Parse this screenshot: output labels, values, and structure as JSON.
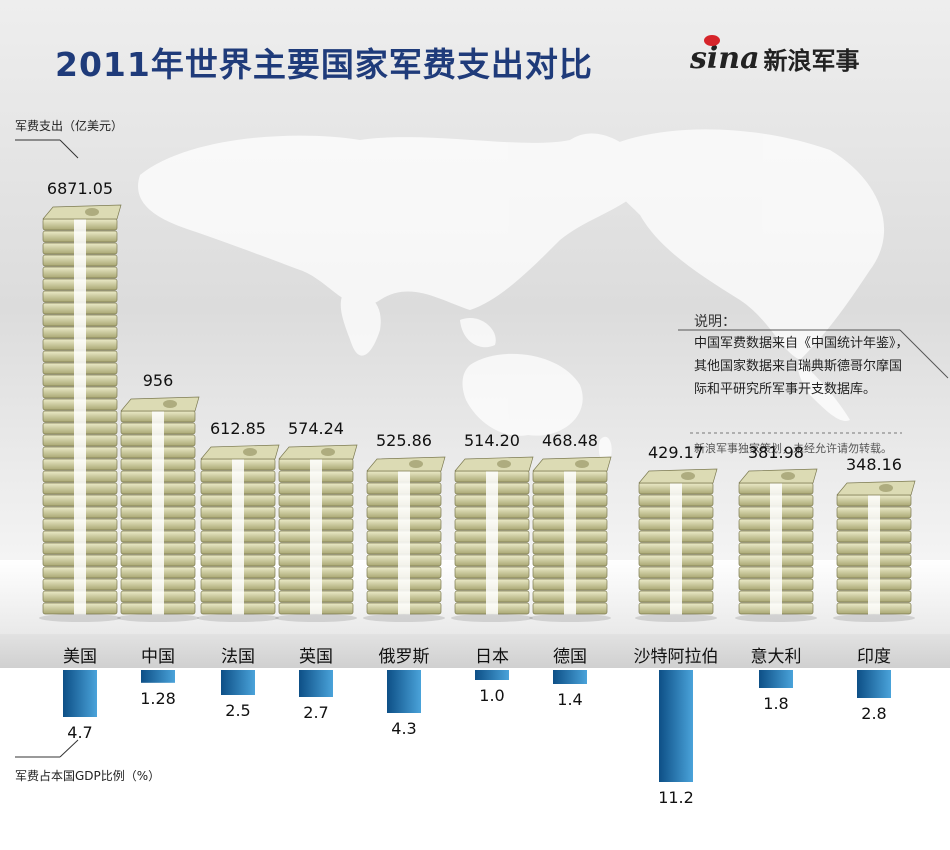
{
  "header": {
    "title": "2011年世界主要国家军费支出对比",
    "logo_mark": "sina",
    "logo_text": "新浪军事"
  },
  "chart_data": {
    "type": "bar",
    "title": "2011年世界主要国家军费支出对比",
    "categories": [
      "美国",
      "中国",
      "法国",
      "英国",
      "俄罗斯",
      "日本",
      "德国",
      "沙特阿拉伯",
      "意大利",
      "印度"
    ],
    "series": [
      {
        "name": "军费支出（亿美元）",
        "values": [
          6871.05,
          956,
          612.85,
          574.24,
          525.86,
          514.2,
          468.48,
          429.17,
          381.98,
          348.16
        ],
        "labels": [
          "6871.05",
          "956",
          "612.85",
          "574.24",
          "525.86",
          "514.20",
          "468.48",
          "429.17",
          "381.98",
          "348.16"
        ]
      },
      {
        "name": "军费占本国GDP比例（%）",
        "values": [
          4.7,
          1.28,
          2.5,
          2.7,
          4.3,
          1.0,
          1.4,
          11.2,
          1.8,
          2.8
        ],
        "labels": [
          "4.7",
          "1.28",
          "2.5",
          "2.7",
          "4.3",
          "1.0",
          "1.4",
          "11.2",
          "1.8",
          "2.8"
        ]
      }
    ],
    "ylabel_spending": "军费支出（亿美元）",
    "ylabel_gdp": "军费占本国GDP比例（%）"
  },
  "note": {
    "title": "说明：",
    "body": "中国军费数据来自《中国统计年鉴》，其他国家数据来自瑞典斯德哥尔摩国际和平研究所军事开支数据库。",
    "credit": "新浪军事独家策划，未经允许请勿转载。"
  },
  "colors": {
    "title": "#1f3b7a",
    "bill_light": "#e6e6c2",
    "bill_mid": "#b7b585",
    "bill_dark": "#6b6b45",
    "band": "#ffffff",
    "gdp_bar_dark": "#0d4f86",
    "gdp_bar_light": "#4aa3da"
  }
}
